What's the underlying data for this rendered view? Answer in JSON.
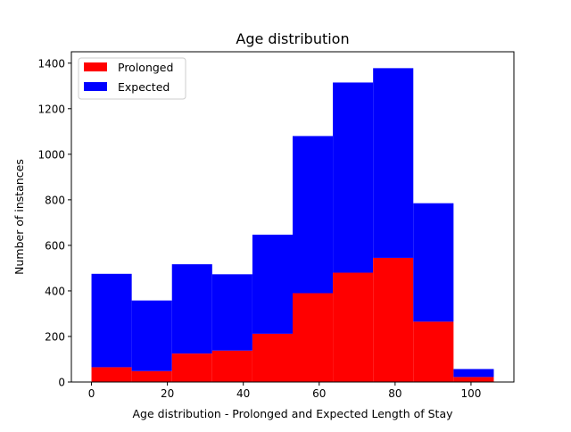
{
  "chart_data": {
    "type": "bar",
    "stacked": true,
    "title": "Age distribution",
    "xlabel": "Age distribution - Prolonged and Expected Length of Stay",
    "ylabel": "Number of instances",
    "xlim": [
      -5.3,
      111.3
    ],
    "ylim": [
      0,
      1450
    ],
    "x_ticks": [
      0,
      20,
      40,
      60,
      80,
      100
    ],
    "y_ticks": [
      0,
      200,
      400,
      600,
      800,
      1000,
      1200,
      1400
    ],
    "bin_edges": [
      0,
      10.6,
      21.2,
      31.8,
      42.4,
      53.0,
      63.6,
      74.2,
      84.8,
      95.4,
      106.0
    ],
    "series": [
      {
        "name": "Prolonged",
        "color": "#ff0000",
        "values": [
          65,
          48,
          125,
          138,
          212,
          390,
          480,
          545,
          265,
          22
        ]
      },
      {
        "name": "Expected",
        "color": "#0000ff",
        "values": [
          410,
          310,
          392,
          335,
          435,
          690,
          835,
          833,
          520,
          35
        ]
      }
    ],
    "legend_position": "top-left",
    "grid": false
  }
}
